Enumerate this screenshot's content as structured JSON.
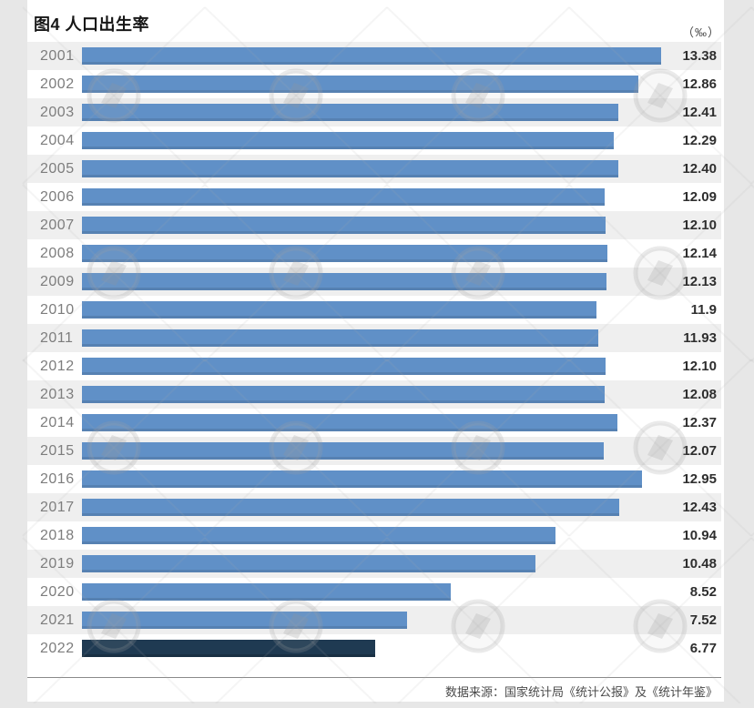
{
  "header": {
    "title": "图4 人口出生率",
    "unit": "（‰）"
  },
  "footer": {
    "source": "数据来源：国家统计局《统计公报》及《统计年鉴》"
  },
  "colors": {
    "bar": "#6090c7",
    "bar_highlight": "#1f3a52",
    "row_alt_bg": "#efefef",
    "card_bg": "#ffffff",
    "page_bg": "#e7e7e7",
    "year_label": "#7d7d7d",
    "value_label": "#2e2e2e"
  },
  "chart_data": {
    "type": "bar",
    "orientation": "horizontal",
    "title": "图4 人口出生率",
    "unit": "‰",
    "xlabel": "",
    "ylabel": "",
    "xlim": [
      0,
      13.39
    ],
    "grid": false,
    "legend": false,
    "categories": [
      "2001",
      "2002",
      "2003",
      "2004",
      "2005",
      "2006",
      "2007",
      "2008",
      "2009",
      "2010",
      "2011",
      "2012",
      "2013",
      "2014",
      "2015",
      "2016",
      "2017",
      "2018",
      "2019",
      "2020",
      "2021",
      "2022"
    ],
    "values": [
      13.38,
      12.86,
      12.41,
      12.29,
      12.4,
      12.09,
      12.1,
      12.14,
      12.13,
      11.9,
      11.93,
      12.1,
      12.08,
      12.37,
      12.07,
      12.95,
      12.43,
      10.94,
      10.48,
      8.52,
      7.52,
      6.77
    ],
    "value_labels": [
      "13.38",
      "12.86",
      "12.41",
      "12.29",
      "12.40",
      "12.09",
      "12.10",
      "12.14",
      "12.13",
      "11.9",
      "11.93",
      "12.10",
      "12.08",
      "12.37",
      "12.07",
      "12.95",
      "12.43",
      "10.94",
      "10.48",
      "8.52",
      "7.52",
      "6.77"
    ],
    "highlight_category": "2022",
    "source": "数据来源：国家统计局《统计公报》及《统计年鉴》"
  }
}
